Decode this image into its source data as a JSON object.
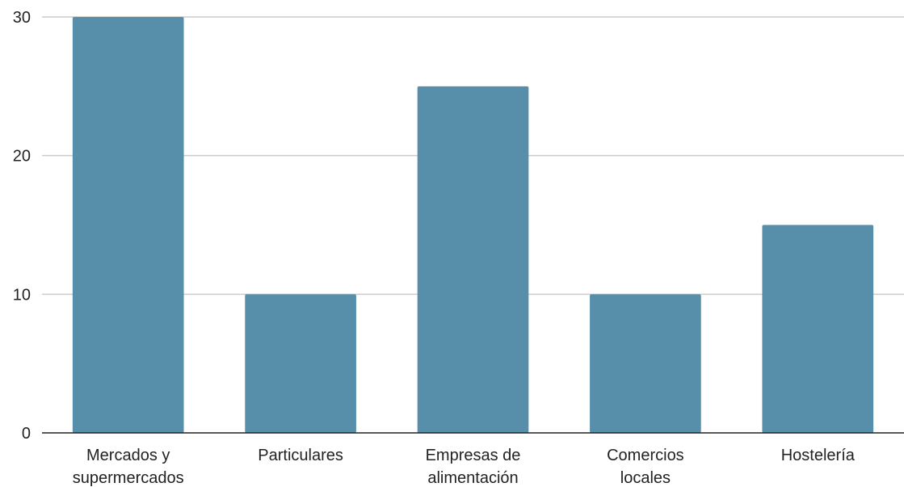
{
  "chart_data": {
    "type": "bar",
    "categories": [
      [
        "Mercados y",
        "supermercados"
      ],
      [
        "Particulares"
      ],
      [
        "Empresas de",
        "alimentación"
      ],
      [
        "Comercios",
        "locales"
      ],
      [
        "Hostelería"
      ]
    ],
    "values": [
      30,
      10,
      25,
      10,
      15
    ],
    "title": "",
    "xlabel": "",
    "ylabel": "",
    "ylim": [
      0,
      30
    ],
    "yticks": [
      0,
      10,
      20,
      30
    ],
    "grid": true,
    "legend": "none",
    "bar_color": "#578fab",
    "grid_color": "#cccccc",
    "axis_color": "#222222"
  }
}
